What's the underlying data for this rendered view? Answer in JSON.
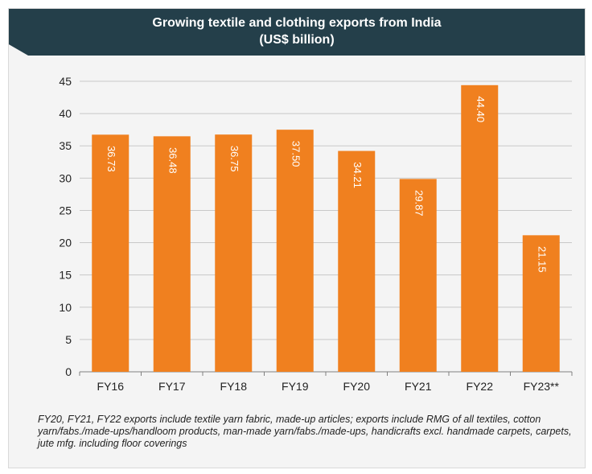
{
  "chart_data": {
    "type": "bar",
    "title": "Growing textile and clothing exports from India",
    "subtitle": "(US$ billion)",
    "categories": [
      "FY16",
      "FY17",
      "FY18",
      "FY19",
      "FY20",
      "FY21",
      "FY22",
      "FY23**"
    ],
    "values": [
      36.73,
      36.48,
      36.75,
      37.5,
      34.21,
      29.87,
      44.4,
      21.15
    ],
    "value_labels": [
      "36.73",
      "36.48",
      "36.75",
      "37.50",
      "34.21",
      "29.87",
      "44.40",
      "21.15"
    ],
    "ylim": [
      0,
      45
    ],
    "yticks": [
      0,
      5,
      10,
      15,
      20,
      25,
      30,
      35,
      40,
      45
    ],
    "grid": true,
    "bar_color": "#f0801f",
    "xlabel": "",
    "ylabel": ""
  },
  "header_color": "#243f4a",
  "footnote": "FY20, FY21, FY22 exports include textile yarn fabric, made-up articles; exports include RMG of all textiles, cotton yarn/fabs./made-ups/handloom products, man-made yarn/fabs./made-ups, handicrafts excl. handmade carpets, carpets, jute mfg. including floor coverings"
}
